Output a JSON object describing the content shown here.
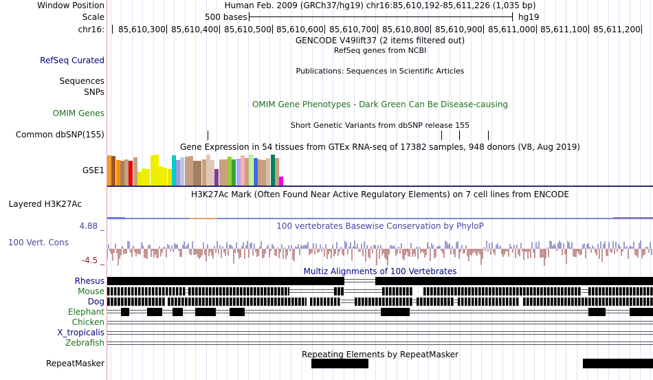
{
  "labels": {
    "window_position": "Window Position",
    "scale": "Scale",
    "chrom": "chr16:",
    "refseq": "RefSeq Curated",
    "sequences": "Sequences",
    "snps": "SNPs",
    "omim": "OMIM Genes",
    "dbsnp": "Common dbSNP(155)",
    "gse1": "GSE1",
    "h3k27ac": "Layered H3K27Ac",
    "cons_max": "4.88 _",
    "cons_name": "100 Vert. Cons",
    "cons_min": "-4.5 _",
    "species": [
      "Rhesus",
      "Mouse",
      "Dog",
      "Elephant",
      "Chicken",
      "X_tropicalis",
      "Zebrafish"
    ],
    "repeatmasker": "RepeatMasker"
  },
  "track": {
    "position_title": "Human Feb. 2009 (GRCh37/hg19)    chr16:85,610,192-85,611,226 (1,035 bp)",
    "scale_label": "500 bases",
    "scale_assembly": "hg19",
    "ticks": [
      "85,610,300",
      "85,610,400",
      "85,610,500",
      "85,610,600",
      "85,610,700",
      "85,610,800",
      "85,610,900",
      "85,611,000",
      "85,611,100",
      "85,611,200"
    ],
    "gencode_title": "GENCODE V49lift37 (2 items filtered out)",
    "refseq_title": "RefSeq genes from NCBI",
    "publications_title": "Publications: Sequences in Scientific Articles",
    "omim_title": "OMIM Gene Phenotypes - Dark Green Can Be Disease-causing",
    "dbsnp_title": "Short Genetic Variants from dbSNP release 155",
    "gtex_title": "Gene Expression in 54 tissues from GTEx RNA-seq of 17382 samples, 948 donors (V8, Aug 2019)",
    "h3k27ac_title": "H3K27Ac Mark (Often Found Near Active Regulatory Elements) on 7 cell lines from ENCODE",
    "cons_title": "100 vertebrates Basewise Conservation by PhyloP",
    "multiz_title": "Multiz Alignments of 100 Vertebrates",
    "repeat_title": "Repeating Elements by RepeatMasker"
  },
  "colors": {
    "label_blue": "#000080",
    "omim_green": "#1d6f1d",
    "cons_blue": "#4646a0",
    "cons_red": "#8b1e1e",
    "gtex_baseline": "#2a2a7a"
  },
  "gtex": [
    {
      "color": "#f0a030",
      "level": 0.92
    },
    {
      "color": "#a0522d",
      "level": 0.9
    },
    {
      "color": "#ff8c00",
      "level": 0.78
    },
    {
      "color": "#a08060",
      "level": 0.76
    },
    {
      "color": "#c8a080",
      "level": 0.8
    },
    {
      "color": "#ee0000",
      "level": 0.76
    },
    {
      "color": "#c8a080",
      "level": 0.86
    },
    {
      "color": "#e8e800",
      "level": 0.42
    },
    {
      "color": "#eeee00",
      "level": 0.52
    },
    {
      "color": "#eeee00",
      "level": 0.5
    },
    {
      "color": "#eeee00",
      "level": 0.92
    },
    {
      "color": "#f0f000",
      "level": 0.94
    },
    {
      "color": "#eeee00",
      "level": 0.58
    },
    {
      "color": "#eeee00",
      "level": 0.54
    },
    {
      "color": "#e8e800",
      "level": 0.5
    },
    {
      "color": "#00cccc",
      "level": 0.92
    },
    {
      "color": "#9c9cd8",
      "level": 0.78
    },
    {
      "color": "#b8c8e8",
      "level": 0.86
    },
    {
      "color": "#c8a080",
      "level": 0.88
    },
    {
      "color": "#c8a080",
      "level": 0.9
    },
    {
      "color": "#a08060",
      "level": 0.76
    },
    {
      "color": "#a08060",
      "level": 0.74
    },
    {
      "color": "#c8a080",
      "level": 0.8
    },
    {
      "color": "#e0c8b8",
      "level": 0.94
    },
    {
      "color": "#e0c8b8",
      "level": 0.78
    },
    {
      "color": "#7b3f9f",
      "level": 0.5
    },
    {
      "color": "#c8a080",
      "level": 0.8
    },
    {
      "color": "#c8a080",
      "level": 0.8
    },
    {
      "color": "#99cc33",
      "level": 0.88
    },
    {
      "color": "#3ca040",
      "level": 0.8
    },
    {
      "color": "#aaaaff",
      "level": 0.82
    },
    {
      "color": "#ffb0b0",
      "level": 0.92
    },
    {
      "color": "#c8a080",
      "level": 0.84
    },
    {
      "color": "#b8f0a0",
      "level": 0.94
    },
    {
      "color": "#4169e1",
      "level": 0.84
    },
    {
      "color": "#c8a080",
      "level": 0.8
    },
    {
      "color": "#c8a080",
      "level": 0.78
    },
    {
      "color": "#d8c0a0",
      "level": 0.84
    },
    {
      "color": "#008060",
      "level": 0.94
    },
    {
      "color": "#c8a080",
      "level": 0.84
    },
    {
      "color": "#ee00ee",
      "level": 0.28
    }
  ]
}
